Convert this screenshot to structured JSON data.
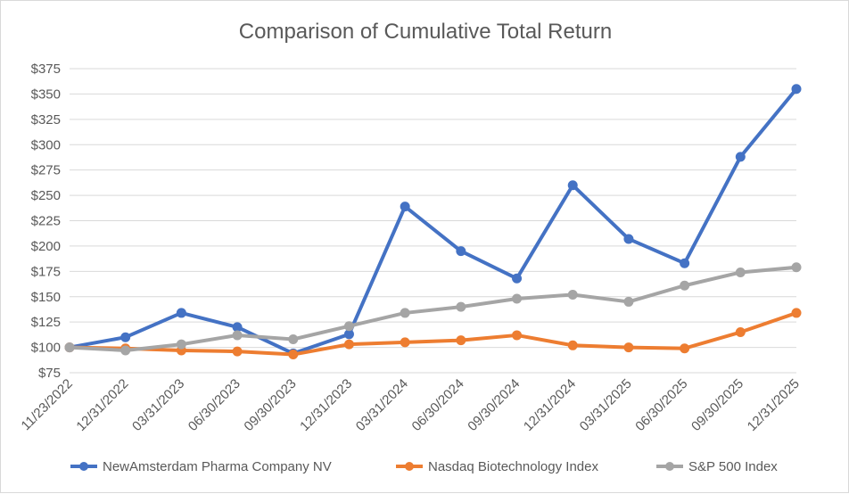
{
  "chart_data": {
    "type": "line",
    "title": "Comparison of Cumulative Total Return",
    "xlabel": "",
    "ylabel": "",
    "ylim": [
      75,
      375
    ],
    "ytick_step": 25,
    "ytick_prefix": "$",
    "grid": true,
    "legend_position": "bottom",
    "categories": [
      "11/23/2022",
      "12/31/2022",
      "03/31/2023",
      "06/30/2023",
      "09/30/2023",
      "12/31/2023",
      "03/31/2024",
      "06/30/2024",
      "09/30/2024",
      "12/31/2024",
      "03/31/2025",
      "06/30/2025",
      "09/30/2025",
      "12/31/2025"
    ],
    "series": [
      {
        "name": "NewAmsterdam Pharma Company NV",
        "color": "#4472c4",
        "values": [
          100,
          110,
          134,
          120,
          94,
          113,
          239,
          195,
          168,
          260,
          207,
          183,
          288,
          355
        ]
      },
      {
        "name": "Nasdaq Biotechnology Index",
        "color": "#ed7d31",
        "values": [
          100,
          99,
          97,
          96,
          93,
          103,
          105,
          107,
          112,
          102,
          100,
          99,
          115,
          134
        ]
      },
      {
        "name": "S&P 500 Index",
        "color": "#a5a5a5",
        "values": [
          100,
          97,
          103,
          112,
          108,
          121,
          134,
          140,
          148,
          152,
          145,
          161,
          174,
          179
        ]
      }
    ]
  }
}
